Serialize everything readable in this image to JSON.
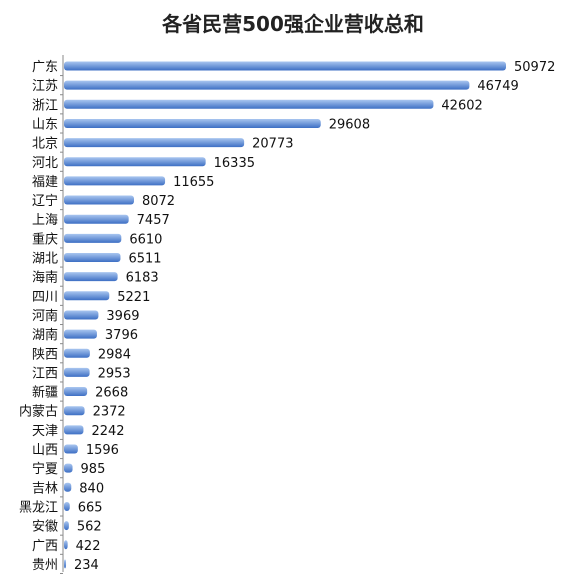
{
  "colors": {
    "bar_light": "#a9c6f0",
    "bar_dark": "#3d6fc4",
    "axis": "#8a8a8a",
    "text": "#111111"
  },
  "chart_data": {
    "type": "bar",
    "orientation": "horizontal",
    "title": "各省民营500强企业营收总和",
    "xlabel": "",
    "ylabel": "",
    "grid": false,
    "legend": "none",
    "xlim": [
      0,
      50972
    ],
    "categories": [
      "广东",
      "江苏",
      "浙江",
      "山东",
      "北京",
      "河北",
      "福建",
      "辽宁",
      "上海",
      "重庆",
      "湖北",
      "海南",
      "四川",
      "河南",
      "湖南",
      "陕西",
      "江西",
      "新疆",
      "内蒙古",
      "天津",
      "山西",
      "宁夏",
      "吉林",
      "黑龙江",
      "安徽",
      "广西",
      "贵州"
    ],
    "values": [
      50972,
      46749,
      42602,
      29608,
      20773,
      16335,
      11655,
      8072,
      7457,
      6610,
      6511,
      6183,
      5221,
      3969,
      3796,
      2984,
      2953,
      2668,
      2372,
      2242,
      1596,
      985,
      840,
      665,
      562,
      422,
      234
    ],
    "value_labels": [
      "50972",
      "46749",
      "42602",
      "29608",
      "20773",
      "16335",
      "11655",
      "8072",
      "7457",
      "6610",
      "6511",
      "6183",
      "5221",
      "3969",
      "3796",
      "2984",
      "2953",
      "2668",
      "2372",
      "2242",
      "1596",
      "985",
      "840",
      "665",
      "562",
      "422",
      "234"
    ]
  }
}
